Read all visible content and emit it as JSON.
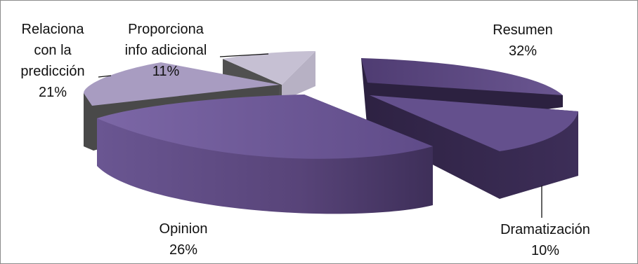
{
  "chart_data": {
    "type": "pie",
    "style": "3d-exploded",
    "slices": [
      {
        "key": "resumen",
        "label_lines": [
          "Resumen"
        ],
        "value_label": "32%",
        "value": 32,
        "color": "#5a4580"
      },
      {
        "key": "dramatizacion",
        "label_lines": [
          "Dramatización"
        ],
        "value_label": "10%",
        "value": 10,
        "color": "#63508c"
      },
      {
        "key": "opinion",
        "label_lines": [
          "Opinion"
        ],
        "value_label": "26%",
        "value": 26,
        "color": "#76609e"
      },
      {
        "key": "relaciona",
        "label_lines": [
          "Relaciona",
          "con la",
          "predicción"
        ],
        "value_label": "21%",
        "value": 21,
        "color": "#a79cc0"
      },
      {
        "key": "proporciona",
        "label_lines": [
          "Proporciona",
          "info adicional"
        ],
        "value_label": "11%",
        "value": 11,
        "color": "#c7c1d4"
      }
    ]
  }
}
